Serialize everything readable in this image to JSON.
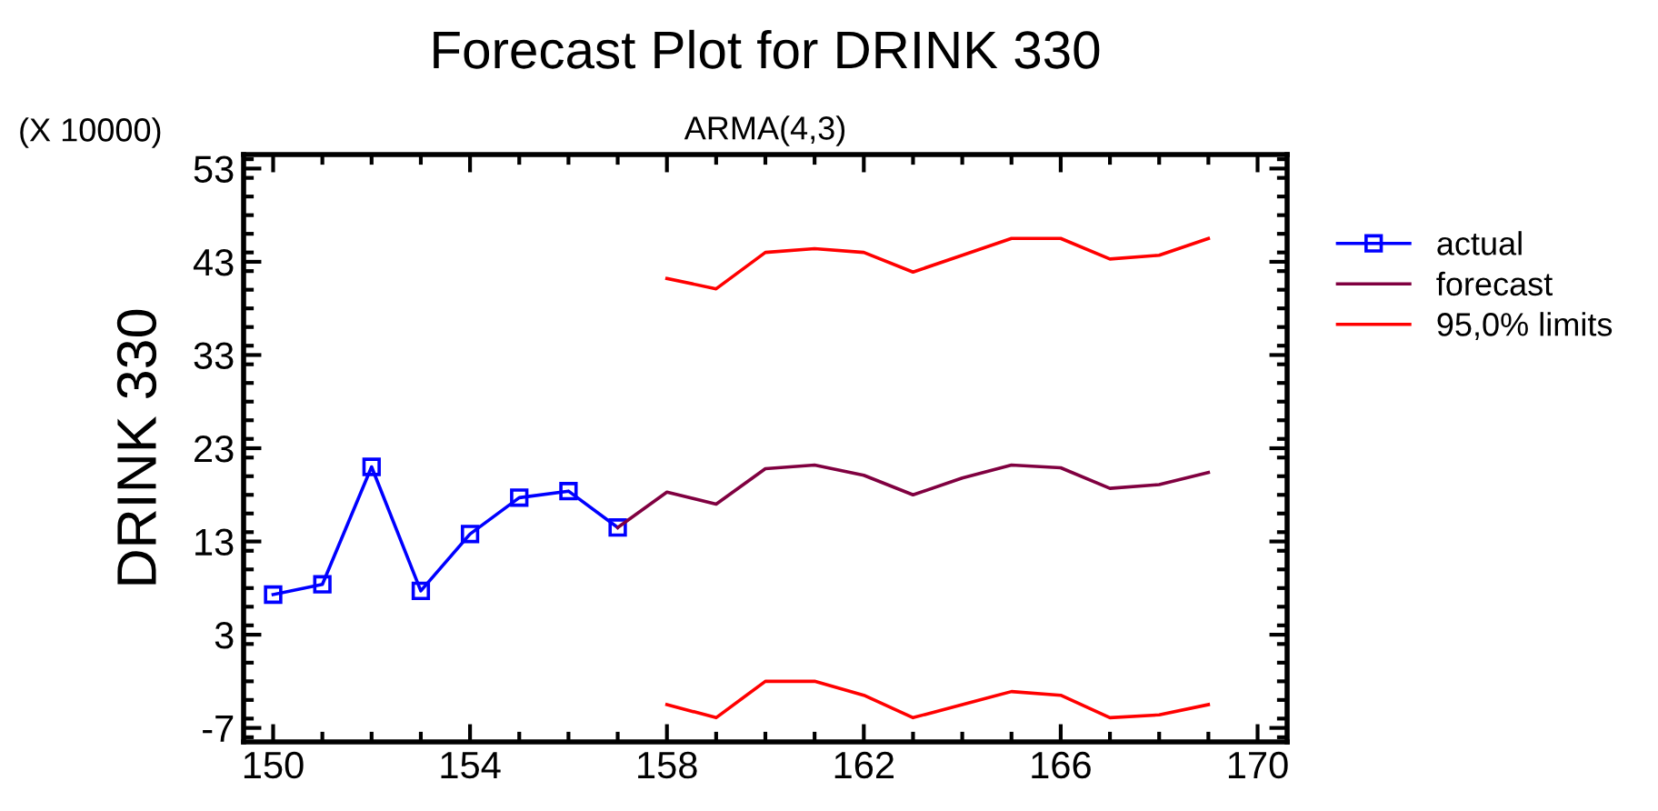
{
  "chart_data": {
    "type": "line",
    "title": "Forecast Plot for DRINK 330",
    "subtitle": "ARMA(4,3)",
    "ylabel": "DRINK 330",
    "annotations": [
      "(X 10000)"
    ],
    "xlim": [
      149.4,
      170.6
    ],
    "xticks": [
      150,
      154,
      158,
      162,
      166,
      170
    ],
    "ylim": [
      -8.5,
      54.5
    ],
    "yticks": [
      -7,
      3,
      13,
      23,
      33,
      43,
      53
    ],
    "grid": false,
    "legend": "top right",
    "series": [
      {
        "name": "actual",
        "color": "#0000ff",
        "marker": "square",
        "x": [
          150,
          151,
          152,
          153,
          154,
          155,
          156,
          157
        ],
        "values": [
          7.3,
          8.4,
          21.0,
          7.7,
          13.8,
          17.7,
          18.4,
          14.5
        ]
      },
      {
        "name": "forecast",
        "color": "#800040",
        "marker": "none",
        "x": [
          157,
          158,
          159,
          160,
          161,
          162,
          163,
          164,
          165,
          166,
          167,
          168,
          169
        ],
        "values": [
          14.5,
          18.3,
          17.0,
          20.8,
          21.2,
          20.1,
          18.0,
          19.8,
          21.2,
          20.9,
          18.7,
          19.1,
          20.4
        ]
      },
      {
        "name": "95,0% limits",
        "color": "#ff0000",
        "marker": "none",
        "x": [
          158,
          159,
          160,
          161,
          162,
          163,
          164,
          165,
          166,
          167,
          168,
          169
        ],
        "values": [
          41.2,
          40.1,
          44.0,
          44.4,
          44.0,
          41.9,
          43.7,
          45.5,
          45.5,
          43.3,
          43.7,
          45.5
        ]
      },
      {
        "color": "#ff0000",
        "marker": "none",
        "x": [
          158,
          159,
          160,
          161,
          162,
          163,
          164,
          165,
          166,
          167,
          168,
          169
        ],
        "values": [
          -4.5,
          -5.9,
          -2.0,
          -2.0,
          -3.5,
          -5.9,
          -4.5,
          -3.1,
          -3.5,
          -5.9,
          -5.6,
          -4.5
        ]
      }
    ]
  }
}
